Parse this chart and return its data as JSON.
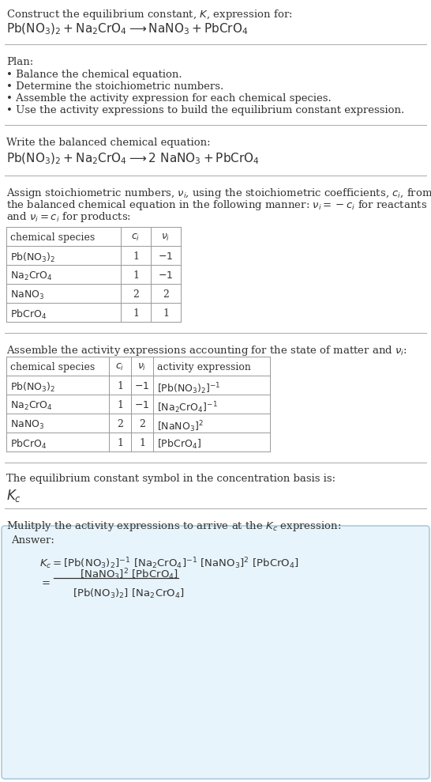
{
  "bg_color": "#ffffff",
  "section1_line1": "Construct the equilibrium constant, $K$, expression for:",
  "section1_line2_parts": [
    "Pb(NO",
    "3",
    ")_2 + Na",
    "2",
    "CrO",
    "4",
    "  ⟶  NaNO",
    "3",
    " + PbCrO",
    "4"
  ],
  "plan_header": "Plan:",
  "plan_bullets": [
    "• Balance the chemical equation.",
    "• Determine the stoichiometric numbers.",
    "• Assemble the activity expression for each chemical species.",
    "• Use the activity expressions to build the equilibrium constant expression."
  ],
  "balanced_header": "Write the balanced chemical equation:",
  "stoich_para_lines": [
    "Assign stoichiometric numbers, $\\nu_i$, using the stoichiometric coefficients, $c_i$, from",
    "the balanced chemical equation in the following manner: $\\nu_i = -c_i$ for reactants",
    "and $\\nu_i = c_i$ for products:"
  ],
  "table1_headers": [
    "chemical species",
    "$c_i$",
    "$\\nu_i$"
  ],
  "table1_rows": [
    [
      "$\\mathrm{Pb(NO_3)_2}$",
      "1",
      "$-1$"
    ],
    [
      "$\\mathrm{Na_2CrO_4}$",
      "1",
      "$-1$"
    ],
    [
      "$\\mathrm{NaNO_3}$",
      "2",
      "2"
    ],
    [
      "$\\mathrm{PbCrO_4}$",
      "1",
      "1"
    ]
  ],
  "assemble_header": "Assemble the activity expressions accounting for the state of matter and $\\nu_i$:",
  "table2_headers": [
    "chemical species",
    "$c_i$",
    "$\\nu_i$",
    "activity expression"
  ],
  "table2_rows": [
    [
      "$\\mathrm{Pb(NO_3)_2}$",
      "1",
      "$-1$",
      "$[\\mathrm{Pb(NO_3)_2}]^{-1}$"
    ],
    [
      "$\\mathrm{Na_2CrO_4}$",
      "1",
      "$-1$",
      "$[\\mathrm{Na_2CrO_4}]^{-1}$"
    ],
    [
      "$\\mathrm{NaNO_3}$",
      "2",
      "2",
      "$[\\mathrm{NaNO_3}]^{2}$"
    ],
    [
      "$\\mathrm{PbCrO_4}$",
      "1",
      "1",
      "$[\\mathrm{PbCrO_4}]$"
    ]
  ],
  "kc_header": "The equilibrium constant symbol in the concentration basis is:",
  "kc_symbol": "$K_c$",
  "multiply_header": "Mulitply the activity expressions to arrive at the $K_c$ expression:",
  "answer_bg": "#e8f4fb",
  "answer_border": "#aaccdd",
  "font_body": 9.5,
  "font_eq": 11,
  "font_table": 9
}
